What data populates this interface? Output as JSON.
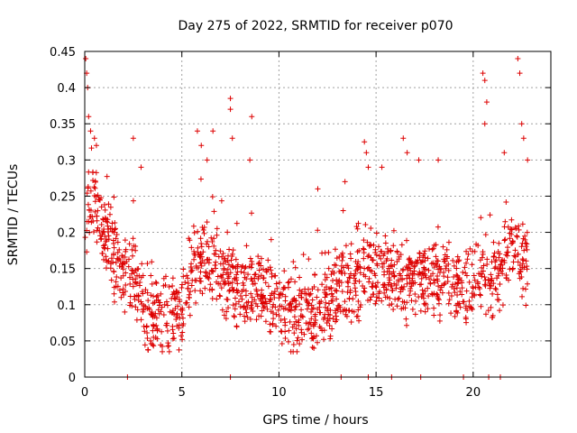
{
  "chart_data": {
    "type": "scatter",
    "title": "Day 275 of 2022, SRMTID for receiver p070",
    "xlabel": "GPS time / hours",
    "ylabel": "SRMTID / TECUs",
    "xlim": [
      0,
      24
    ],
    "ylim": [
      0,
      0.45
    ],
    "x_ticks": [
      0,
      5,
      10,
      15,
      20
    ],
    "x_tick_labels": [
      "0",
      "5",
      "10",
      "15",
      "20"
    ],
    "y_ticks": [
      0,
      0.05,
      0.1,
      0.15,
      0.2,
      0.25,
      0.3,
      0.35,
      0.4,
      0.45
    ],
    "y_tick_labels": [
      "0",
      "0.05",
      "0.1",
      "0.15",
      "0.2",
      "0.25",
      "0.3",
      "0.35",
      "0.4",
      "0.45"
    ],
    "grid": true,
    "marker": "+",
    "color": "#dd0000",
    "zero_markers_x": [
      2.2,
      7.5,
      13.2,
      14.6,
      15.8,
      17.3,
      19.5,
      20.8,
      21.4
    ],
    "series": [
      {
        "name": "SRMTID",
        "trend": [
          [
            0.0,
            0.22
          ],
          [
            0.5,
            0.25
          ],
          [
            1.0,
            0.2
          ],
          [
            1.5,
            0.16
          ],
          [
            2.0,
            0.14
          ],
          [
            2.5,
            0.14
          ],
          [
            3.0,
            0.1
          ],
          [
            3.5,
            0.085
          ],
          [
            4.0,
            0.085
          ],
          [
            4.5,
            0.09
          ],
          [
            5.0,
            0.1
          ],
          [
            5.5,
            0.15
          ],
          [
            6.0,
            0.16
          ],
          [
            6.5,
            0.15
          ],
          [
            7.0,
            0.13
          ],
          [
            7.5,
            0.13
          ],
          [
            8.0,
            0.12
          ],
          [
            8.5,
            0.13
          ],
          [
            9.0,
            0.13
          ],
          [
            9.5,
            0.12
          ],
          [
            10.0,
            0.1
          ],
          [
            10.5,
            0.09
          ],
          [
            11.0,
            0.09
          ],
          [
            11.5,
            0.085
          ],
          [
            12.0,
            0.09
          ],
          [
            12.5,
            0.1
          ],
          [
            13.0,
            0.12
          ],
          [
            13.5,
            0.13
          ],
          [
            14.0,
            0.13
          ],
          [
            14.5,
            0.14
          ],
          [
            15.0,
            0.15
          ],
          [
            15.5,
            0.14
          ],
          [
            16.0,
            0.14
          ],
          [
            16.5,
            0.13
          ],
          [
            17.0,
            0.13
          ],
          [
            17.5,
            0.14
          ],
          [
            18.0,
            0.13
          ],
          [
            18.5,
            0.13
          ],
          [
            19.0,
            0.13
          ],
          [
            19.5,
            0.12
          ],
          [
            20.0,
            0.13
          ],
          [
            20.5,
            0.14
          ],
          [
            21.0,
            0.14
          ],
          [
            21.5,
            0.15
          ],
          [
            22.0,
            0.17
          ],
          [
            22.5,
            0.16
          ],
          [
            22.8,
            0.15
          ]
        ],
        "spikes": [
          [
            0.05,
            0.44
          ],
          [
            0.1,
            0.42
          ],
          [
            0.15,
            0.4
          ],
          [
            0.2,
            0.36
          ],
          [
            0.3,
            0.34
          ],
          [
            0.5,
            0.33
          ],
          [
            0.6,
            0.32
          ],
          [
            2.5,
            0.33
          ],
          [
            2.9,
            0.29
          ],
          [
            5.8,
            0.34
          ],
          [
            6.0,
            0.32
          ],
          [
            6.3,
            0.3
          ],
          [
            6.6,
            0.34
          ],
          [
            7.5,
            0.385
          ],
          [
            7.5,
            0.37
          ],
          [
            7.6,
            0.33
          ],
          [
            8.6,
            0.36
          ],
          [
            8.5,
            0.3
          ],
          [
            12.0,
            0.26
          ],
          [
            13.4,
            0.27
          ],
          [
            14.4,
            0.325
          ],
          [
            14.5,
            0.31
          ],
          [
            14.6,
            0.29
          ],
          [
            15.3,
            0.29
          ],
          [
            16.4,
            0.33
          ],
          [
            16.6,
            0.31
          ],
          [
            17.2,
            0.3
          ],
          [
            18.2,
            0.3
          ],
          [
            20.5,
            0.42
          ],
          [
            20.6,
            0.41
          ],
          [
            20.7,
            0.38
          ],
          [
            20.6,
            0.35
          ],
          [
            21.6,
            0.31
          ],
          [
            22.3,
            0.44
          ],
          [
            22.4,
            0.42
          ],
          [
            22.5,
            0.35
          ],
          [
            22.6,
            0.33
          ],
          [
            22.8,
            0.3
          ]
        ]
      }
    ]
  }
}
